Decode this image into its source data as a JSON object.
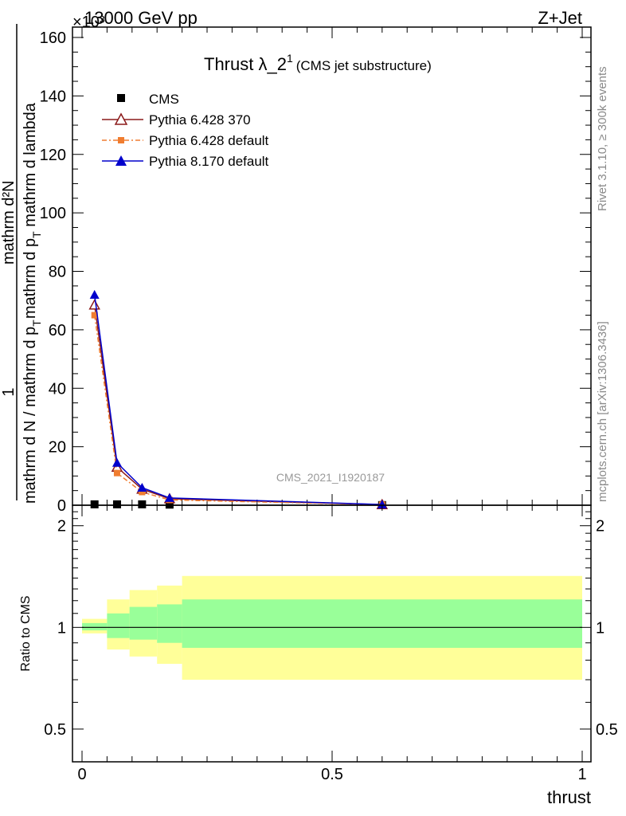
{
  "header": {
    "left": "13000 GeV pp",
    "right": "Z+Jet",
    "exponent": "×10³"
  },
  "side_labels": {
    "rivet": "Rivet 3.1.10, ≥ 300k events",
    "mcplots": "mcplots.cern.ch [arXiv:1306.3436]"
  },
  "watermark": "CMS_2021_I1920187",
  "chart_data": [
    {
      "type": "line",
      "title": "Thrust λ_2",
      "title_sup": "1",
      "subtitle": "(CMS jet substructure)",
      "ylabel_numerator": "mathrm d²N",
      "ylabel_numerator_part2": "mathrm d p",
      "ylabel_numerator_part3": " mathrm d lambda",
      "ylabel_denominator": "mathrm d N / mathrm d p",
      "ylabel_one": "1",
      "ylabel_sub": "T",
      "xlim": [
        0,
        1
      ],
      "ylim": [
        0,
        160
      ],
      "y_ticks": [
        0,
        20,
        40,
        60,
        80,
        100,
        120,
        140,
        160
      ],
      "x_ticks": [
        0,
        0.5,
        1
      ],
      "legend_position": "top-left",
      "series": [
        {
          "name": "CMS",
          "x": [
            0.025,
            0.07,
            0.12,
            0.175,
            0.6
          ],
          "y": [
            0.3,
            0.3,
            0.3,
            0.2,
            0.05
          ],
          "color": "#000000",
          "marker": "square"
        },
        {
          "name": "Pythia 6.428 370",
          "x": [
            0.025,
            0.07,
            0.12,
            0.175,
            0.6
          ],
          "y": [
            68.5,
            13.0,
            5.5,
            2.2,
            0.2
          ],
          "color": "#8b1a1a",
          "marker": "triangle-open"
        },
        {
          "name": "Pythia 6.428 default",
          "x": [
            0.025,
            0.07,
            0.12,
            0.175,
            0.6
          ],
          "y": [
            65.0,
            11.0,
            4.5,
            1.8,
            0.2
          ],
          "color": "#f07d30",
          "marker": "square",
          "dash": "6,3,2,3"
        },
        {
          "name": "Pythia 8.170 default",
          "x": [
            0.025,
            0.07,
            0.12,
            0.175,
            0.6
          ],
          "y": [
            72.0,
            14.5,
            6.0,
            2.5,
            0.25
          ],
          "color": "#0000cc",
          "marker": "triangle"
        }
      ]
    },
    {
      "type": "area",
      "ylabel": "Ratio to CMS",
      "xlabel": "thrust",
      "xlim": [
        0,
        1
      ],
      "ylim": [
        0.4,
        2.3
      ],
      "log_scale": true,
      "y_ticks": [
        0.5,
        1,
        2
      ],
      "x_ticks": [
        0,
        0.5,
        1
      ],
      "bin_edges": [
        0,
        0.05,
        0.095,
        0.15,
        0.2,
        1.0
      ],
      "inner_band": {
        "color": "#99ff99",
        "lo": [
          0.98,
          0.93,
          0.92,
          0.9,
          0.87
        ],
        "hi": [
          1.03,
          1.1,
          1.15,
          1.17,
          1.21
        ]
      },
      "outer_band": {
        "color": "#ffff99",
        "lo": [
          0.96,
          0.86,
          0.82,
          0.78,
          0.7
        ],
        "hi": [
          1.06,
          1.21,
          1.29,
          1.33,
          1.42
        ]
      },
      "reference_line": 1
    }
  ]
}
